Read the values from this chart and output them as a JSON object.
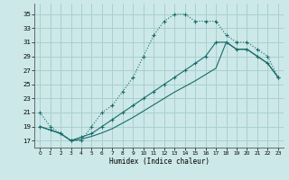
{
  "xlabel": "Humidex (Indice chaleur)",
  "background_color": "#cce8e8",
  "grid_color": "#aacfcf",
  "line_color": "#1a6b6b",
  "xlim": [
    -0.5,
    23.5
  ],
  "ylim": [
    16.0,
    36.5
  ],
  "xticks": [
    0,
    1,
    2,
    3,
    4,
    5,
    6,
    7,
    8,
    9,
    10,
    11,
    12,
    13,
    14,
    15,
    16,
    17,
    18,
    19,
    20,
    21,
    22,
    23
  ],
  "yticks": [
    17,
    19,
    21,
    23,
    25,
    27,
    29,
    31,
    33,
    35
  ],
  "line1_x": [
    0,
    1,
    2,
    3,
    4,
    5,
    6,
    7,
    8,
    9,
    10,
    11,
    12,
    13,
    14,
    15,
    16,
    17,
    18,
    19,
    20,
    21,
    22,
    23
  ],
  "line1_y": [
    21,
    19,
    18,
    17,
    17,
    19,
    21,
    22,
    24,
    26,
    29,
    32,
    34,
    35,
    35,
    34,
    34,
    34,
    32,
    31,
    31,
    30,
    29,
    26
  ],
  "line2_x": [
    0,
    1,
    2,
    3,
    4,
    5,
    6,
    7,
    8,
    9,
    10,
    11,
    12,
    13,
    14,
    15,
    16,
    17,
    18,
    19,
    20,
    21,
    22,
    23
  ],
  "line2_y": [
    19,
    18.5,
    18,
    17,
    17.5,
    18,
    19,
    20,
    21,
    22,
    23,
    24,
    25,
    26,
    27,
    28,
    29,
    31,
    31,
    30,
    30,
    29,
    28,
    26
  ],
  "line3_x": [
    0,
    1,
    2,
    3,
    4,
    5,
    6,
    7,
    8,
    9,
    10,
    11,
    12,
    13,
    14,
    15,
    16,
    17,
    18,
    19,
    20,
    21,
    22,
    23
  ],
  "line3_y": [
    19,
    18.5,
    18,
    17,
    17.2,
    17.6,
    18.1,
    18.7,
    19.5,
    20.3,
    21.2,
    22.1,
    23.0,
    23.9,
    24.7,
    25.5,
    26.4,
    27.3,
    31,
    30,
    30,
    29,
    28,
    26
  ]
}
